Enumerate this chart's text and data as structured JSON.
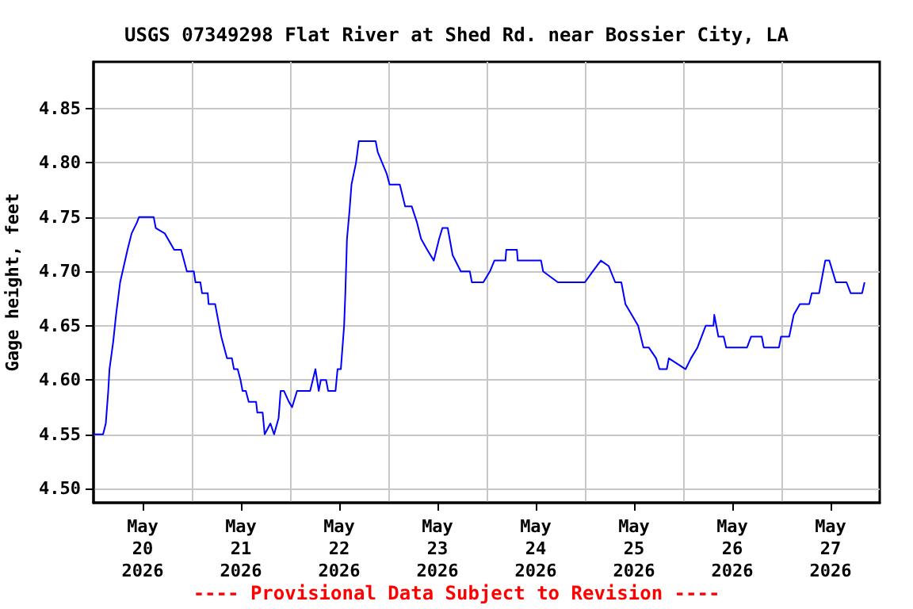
{
  "chart_data": {
    "type": "line",
    "title": "USGS 07349298 Flat River at Shed Rd. near Bossier City, LA",
    "ylabel": "Gage height, feet",
    "annotations": [
      "---- Provisional Data Subject to Revision ----"
    ],
    "x": [
      "2026-05-20T00:00",
      "2026-05-20T02:20",
      "2026-05-20T03:00",
      "2026-05-20T03:36",
      "2026-05-20T03:54",
      "2026-05-20T04:48",
      "2026-05-20T05:30",
      "2026-05-20T06:30",
      "2026-05-20T07:24",
      "2026-05-20T08:18",
      "2026-05-20T09:18",
      "2026-05-20T10:36",
      "2026-05-20T11:06",
      "2026-05-20T14:42",
      "2026-05-20T15:12",
      "2026-05-20T17:24",
      "2026-05-20T19:42",
      "2026-05-20T21:24",
      "2026-05-20T22:06",
      "2026-05-20T22:48",
      "2026-05-21T00:30",
      "2026-05-21T00:54",
      "2026-05-21T02:06",
      "2026-05-21T02:30",
      "2026-05-21T03:54",
      "2026-05-21T04:06",
      "2026-05-21T05:42",
      "2026-05-21T06:12",
      "2026-05-21T07:12",
      "2026-05-21T08:36",
      "2026-05-21T09:48",
      "2026-05-21T10:18",
      "2026-05-21T11:12",
      "2026-05-21T11:54",
      "2026-05-21T12:24",
      "2026-05-21T13:12",
      "2026-05-21T13:54",
      "2026-05-21T15:42",
      "2026-05-21T16:00",
      "2026-05-21T17:18",
      "2026-05-21T17:48",
      "2026-05-21T19:12",
      "2026-05-21T20:06",
      "2026-05-21T21:12",
      "2026-05-21T21:42",
      "2026-05-21T22:30",
      "2026-05-21T23:42",
      "2026-05-22T00:30",
      "2026-05-22T01:42",
      "2026-05-22T04:54",
      "2026-05-22T06:12",
      "2026-05-22T07:00",
      "2026-05-22T07:30",
      "2026-05-22T08:48",
      "2026-05-22T09:18",
      "2026-05-22T11:06",
      "2026-05-22T11:36",
      "2026-05-22T12:24",
      "2026-05-22T13:12",
      "2026-05-22T13:30",
      "2026-05-22T13:54",
      "2026-05-22T14:30",
      "2026-05-22T15:00",
      "2026-05-22T16:06",
      "2026-05-22T16:48",
      "2026-05-22T20:54",
      "2026-05-22T21:24",
      "2026-05-22T22:30",
      "2026-05-22T23:36",
      "2026-05-23T00:18",
      "2026-05-23T02:48",
      "2026-05-23T04:06",
      "2026-05-23T05:42",
      "2026-05-23T07:00",
      "2026-05-23T08:00",
      "2026-05-23T09:30",
      "2026-05-23T11:06",
      "2026-05-23T12:24",
      "2026-05-23T13:12",
      "2026-05-23T14:30",
      "2026-05-23T15:42",
      "2026-05-23T17:42",
      "2026-05-23T19:54",
      "2026-05-23T20:24",
      "2026-05-23T23:12",
      "2026-05-24T00:48",
      "2026-05-24T01:54",
      "2026-05-24T04:36",
      "2026-05-24T04:48",
      "2026-05-24T07:24",
      "2026-05-24T07:36",
      "2026-05-24T13:18",
      "2026-05-24T13:48",
      "2026-05-24T17:24",
      "2026-05-25T00:00",
      "2026-05-25T01:54",
      "2026-05-25T03:54",
      "2026-05-25T05:48",
      "2026-05-25T07:24",
      "2026-05-25T08:54",
      "2026-05-25T09:54",
      "2026-05-25T13:00",
      "2026-05-25T14:18",
      "2026-05-25T15:36",
      "2026-05-25T17:24",
      "2026-05-25T18:12",
      "2026-05-25T20:00",
      "2026-05-25T20:30",
      "2026-05-26T00:36",
      "2026-05-26T01:54",
      "2026-05-26T03:30",
      "2026-05-26T05:30",
      "2026-05-26T07:24",
      "2026-05-26T07:36",
      "2026-05-26T08:36",
      "2026-05-26T09:54",
      "2026-05-26T10:30",
      "2026-05-26T15:36",
      "2026-05-26T16:36",
      "2026-05-26T19:12",
      "2026-05-26T19:42",
      "2026-05-26T23:24",
      "2026-05-26T23:54",
      "2026-05-27T01:54",
      "2026-05-27T03:00",
      "2026-05-27T04:30",
      "2026-05-27T06:48",
      "2026-05-27T07:24",
      "2026-05-27T09:12",
      "2026-05-27T10:12",
      "2026-05-27T10:42",
      "2026-05-27T11:42",
      "2026-05-27T13:18",
      "2026-05-27T15:54",
      "2026-05-27T16:54",
      "2026-05-27T19:42",
      "2026-05-27T20:18"
    ],
    "series": [
      {
        "color": "#0000ff",
        "values": [
          4.55,
          4.55,
          4.56,
          4.59,
          4.61,
          4.635,
          4.66,
          4.69,
          4.705,
          4.72,
          4.735,
          4.745,
          4.75,
          4.75,
          4.74,
          4.735,
          4.72,
          4.72,
          4.71,
          4.7,
          4.7,
          4.69,
          4.69,
          4.68,
          4.68,
          4.67,
          4.67,
          4.66,
          4.64,
          4.62,
          4.62,
          4.61,
          4.61,
          4.6,
          4.59,
          4.59,
          4.58,
          4.58,
          4.57,
          4.57,
          4.55,
          4.56,
          4.55,
          4.565,
          4.59,
          4.59,
          4.58,
          4.575,
          4.59,
          4.59,
          4.61,
          4.59,
          4.6,
          4.6,
          4.59,
          4.59,
          4.61,
          4.61,
          4.65,
          4.68,
          4.73,
          4.755,
          4.78,
          4.8,
          4.82,
          4.82,
          4.81,
          4.8,
          4.79,
          4.78,
          4.78,
          4.76,
          4.76,
          4.745,
          4.73,
          4.72,
          4.71,
          4.73,
          4.74,
          4.74,
          4.715,
          4.7,
          4.7,
          4.69,
          4.69,
          4.7,
          4.71,
          4.71,
          4.72,
          4.72,
          4.71,
          4.71,
          4.7,
          4.69,
          4.69,
          4.7,
          4.71,
          4.705,
          4.69,
          4.69,
          4.67,
          4.65,
          4.63,
          4.63,
          4.62,
          4.61,
          4.61,
          4.62,
          4.61,
          4.62,
          4.63,
          4.65,
          4.65,
          4.66,
          4.64,
          4.64,
          4.63,
          4.63,
          4.64,
          4.64,
          4.63,
          4.63,
          4.64,
          4.64,
          4.66,
          4.67,
          4.67,
          4.68,
          4.68,
          4.7,
          4.71,
          4.71,
          4.69,
          4.69,
          4.68,
          4.68,
          4.69
        ]
      }
    ],
    "xlim": [
      "2026-05-20T00:00",
      "2026-05-28T00:00"
    ],
    "xticks": [
      {
        "value": "2026-05-20T12:00",
        "label": "May\n20\n2026"
      },
      {
        "value": "2026-05-21T12:00",
        "label": "May\n21\n2026"
      },
      {
        "value": "2026-05-22T12:00",
        "label": "May\n22\n2026"
      },
      {
        "value": "2026-05-23T12:00",
        "label": "May\n23\n2026"
      },
      {
        "value": "2026-05-24T12:00",
        "label": "May\n24\n2026"
      },
      {
        "value": "2026-05-25T12:00",
        "label": "May\n25\n2026"
      },
      {
        "value": "2026-05-26T12:00",
        "label": "May\n26\n2026"
      },
      {
        "value": "2026-05-27T12:00",
        "label": "May\n27\n2026"
      },
      {
        "value": "2026-05-21T00:00",
        "label": null
      },
      {
        "value": "2026-05-22T00:00",
        "label": null
      },
      {
        "value": "2026-05-23T00:00",
        "label": null
      },
      {
        "value": "2026-05-24T00:00",
        "label": null
      },
      {
        "value": "2026-05-25T00:00",
        "label": null
      },
      {
        "value": "2026-05-26T00:00",
        "label": null
      },
      {
        "value": "2026-05-27T00:00",
        "label": null
      }
    ],
    "ylim": [
      4.487,
      4.893
    ],
    "yticks": [
      {
        "value": 4.5,
        "label": "4.50"
      },
      {
        "value": 4.55,
        "label": "4.55"
      },
      {
        "value": 4.6,
        "label": "4.60"
      },
      {
        "value": 4.65,
        "label": "4.65"
      },
      {
        "value": 4.7,
        "label": "4.70"
      },
      {
        "value": 4.75,
        "label": "4.75"
      },
      {
        "value": 4.8,
        "label": "4.80"
      },
      {
        "value": 4.85,
        "label": "4.85"
      }
    ],
    "grid": true,
    "marker": "none",
    "line_style": "solid"
  }
}
